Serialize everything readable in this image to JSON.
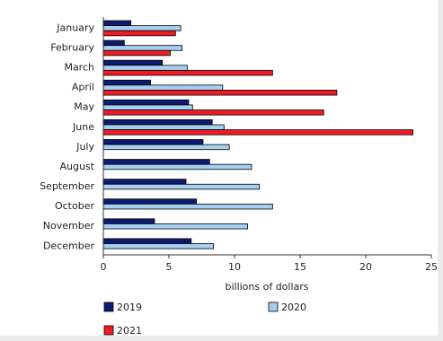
{
  "chart_data": {
    "type": "hbar",
    "xlabel": "billions of dollars",
    "categories": [
      "January",
      "February",
      "March",
      "April",
      "May",
      "June",
      "July",
      "August",
      "September",
      "October",
      "November",
      "December"
    ],
    "series": [
      {
        "name": "2019",
        "color": "#0b1c72",
        "values": [
          2.1,
          1.6,
          4.5,
          3.6,
          6.5,
          8.3,
          7.6,
          8.1,
          6.3,
          7.1,
          3.9,
          6.7
        ]
      },
      {
        "name": "2020",
        "color": "#a6cef0",
        "values": [
          5.9,
          6.0,
          6.4,
          9.1,
          6.8,
          9.2,
          9.6,
          11.3,
          11.9,
          12.9,
          11.0,
          8.4
        ]
      },
      {
        "name": "2021",
        "color": "#ee1c25",
        "values": [
          5.5,
          5.1,
          12.9,
          17.8,
          16.8,
          23.6,
          null,
          null,
          null,
          null,
          null,
          null
        ]
      }
    ],
    "xlim": [
      0,
      25
    ],
    "xticks": [
      0,
      5,
      10,
      15,
      20,
      25
    ]
  }
}
